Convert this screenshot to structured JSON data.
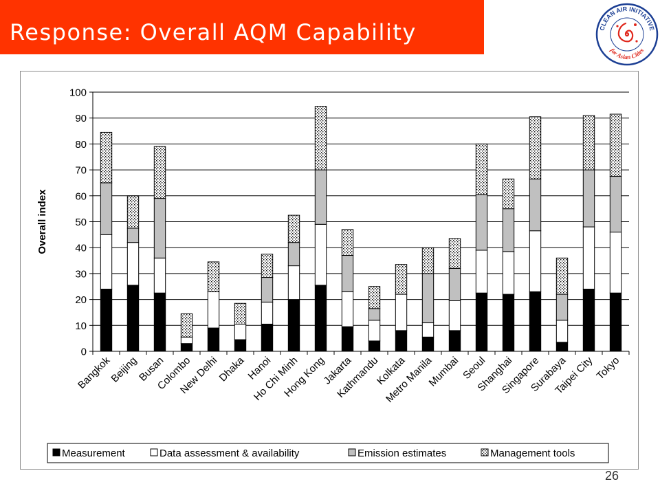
{
  "page": {
    "title": "Response: Overall AQM Capability",
    "page_number": "26",
    "logo_top_text": "CLEAN AIR INITIATIVE",
    "logo_bottom_text": "for Asian Cities"
  },
  "colors": {
    "title_bar": "#ff3300",
    "logo_red": "#e0261b",
    "logo_blue": "#1c3f94",
    "series_measurement": "#000000",
    "series_data_assessment": "#ffffff",
    "series_emission": "#c0c0c0",
    "series_management": "dotted"
  },
  "chart_data": {
    "type": "bar",
    "stacked": true,
    "ylabel": "Overall index",
    "xlabel": "",
    "ylim": [
      0,
      100
    ],
    "yticks": [
      0,
      10,
      20,
      30,
      40,
      50,
      60,
      70,
      80,
      90,
      100
    ],
    "grid": "horizontal",
    "legend_position": "bottom",
    "categories": [
      "Bangkok",
      "Beijing",
      "Busan",
      "Colombo",
      "New Delhi",
      "Dhaka",
      "Hanoi",
      "Ho Chi Minh",
      "Hong Kong",
      "Jakarta",
      "Kathmandu",
      "Kolkata",
      "Metro Manila",
      "Mumbai",
      "Seoul",
      "Shanghai",
      "Singapore",
      "Surabaya",
      "Taipei City",
      "Tokyo"
    ],
    "series": [
      {
        "name": "Measurement",
        "values": [
          24,
          25.5,
          22.5,
          3,
          9,
          4.5,
          10.5,
          20,
          25.5,
          9.5,
          4,
          8,
          5.5,
          8,
          22.5,
          22,
          23,
          3.5,
          24,
          22.5
        ]
      },
      {
        "name": "Data assessment & availability",
        "values": [
          21,
          16.5,
          13.5,
          2.5,
          14,
          6,
          8.5,
          13,
          23.5,
          13.5,
          8,
          14,
          5.5,
          11.5,
          16.5,
          16.5,
          23.5,
          8.5,
          24,
          23.5
        ]
      },
      {
        "name": "Emission estimates",
        "values": [
          20,
          5.5,
          23,
          0,
          0,
          0,
          9.5,
          9,
          21,
          14,
          4.5,
          0,
          19,
          12.5,
          21.5,
          16.5,
          20,
          10,
          22,
          21.5
        ]
      },
      {
        "name": "Management tools",
        "values": [
          19.5,
          12.5,
          20,
          9,
          11.5,
          8,
          9,
          10.5,
          24.5,
          10,
          8.5,
          11.5,
          10,
          11.5,
          19.5,
          11.5,
          24,
          14,
          21,
          24
        ]
      }
    ]
  }
}
